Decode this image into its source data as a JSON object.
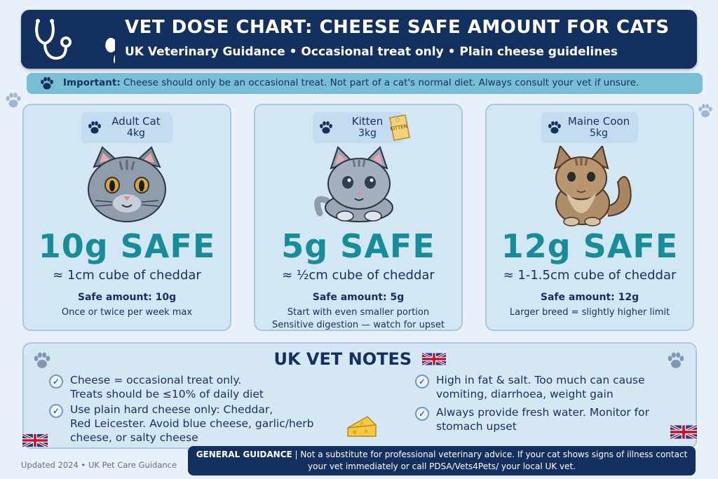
{
  "header": {
    "title": "VET DOSE CHART: CHEESE SAFE AMOUNT FOR CATS",
    "subtitle": "UK Veterinary Guidance • Occasional treat only • Plain cheese guidelines"
  },
  "important": {
    "label": "Important:",
    "text": " Cheese should only be an occasional treat. Not part of a cat's normal diet. Always consult your vet if unsure."
  },
  "cards": [
    {
      "name": "Adult Cat",
      "weight": "4kg",
      "amount": "10g SAFE",
      "cube": "≈ 1cm cube of cheddar",
      "safe": "Safe amount: 10g",
      "notes": [
        "Once or twice per week max"
      ]
    },
    {
      "name": "Kitten",
      "weight": "3kg",
      "tag": "KITTEN",
      "amount": "5g SAFE",
      "cube": "≈ ½cm cube of cheddar",
      "safe": "Safe amount: 5g",
      "notes": [
        "Start with even smaller portion",
        "Sensitive digestion — watch for upset"
      ]
    },
    {
      "name": "Maine Coon",
      "weight": "5kg",
      "amount": "12g SAFE",
      "cube": "≈ 1-1.5cm cube of cheddar",
      "safe": "Safe amount: 12g",
      "notes": [
        "Larger breed = slightly higher limit"
      ]
    }
  ],
  "vet_notes": {
    "title": "UK VET NOTES",
    "left": [
      [
        "Cheese = occasional treat only.",
        "Treats should be ≤10% of daily diet"
      ],
      [
        "Use plain hard cheese only: Cheddar,",
        "Red Leicester. Avoid blue cheese, garlic/herb",
        "cheese, or salty cheese"
      ]
    ],
    "right": [
      [
        "High in fat & salt. Too much can cause",
        "vomiting, diarrhoea, weight gain"
      ],
      [
        "Always provide fresh water. Monitor for",
        "stomach upset"
      ]
    ]
  },
  "footer": {
    "label": "GENERAL GUIDANCE",
    "line1": " | Not a substitute for professional veterinary advice. If your cat shows signs of illness contact",
    "line2": "your vet immediately or call PDSA/Vets4Pets/ your local UK vet."
  },
  "updated": "Updated 2024 • UK Pet Care Guidance",
  "colors": {
    "navy": "#14305e",
    "teal": "#178d9a",
    "card_bg": "#d3e6f4",
    "banner": "#79bfd3"
  },
  "icons": [
    "stethoscope-icon",
    "paw-icon",
    "check-icon",
    "uk-flag-icon",
    "cheese-icon",
    "tag-icon"
  ]
}
